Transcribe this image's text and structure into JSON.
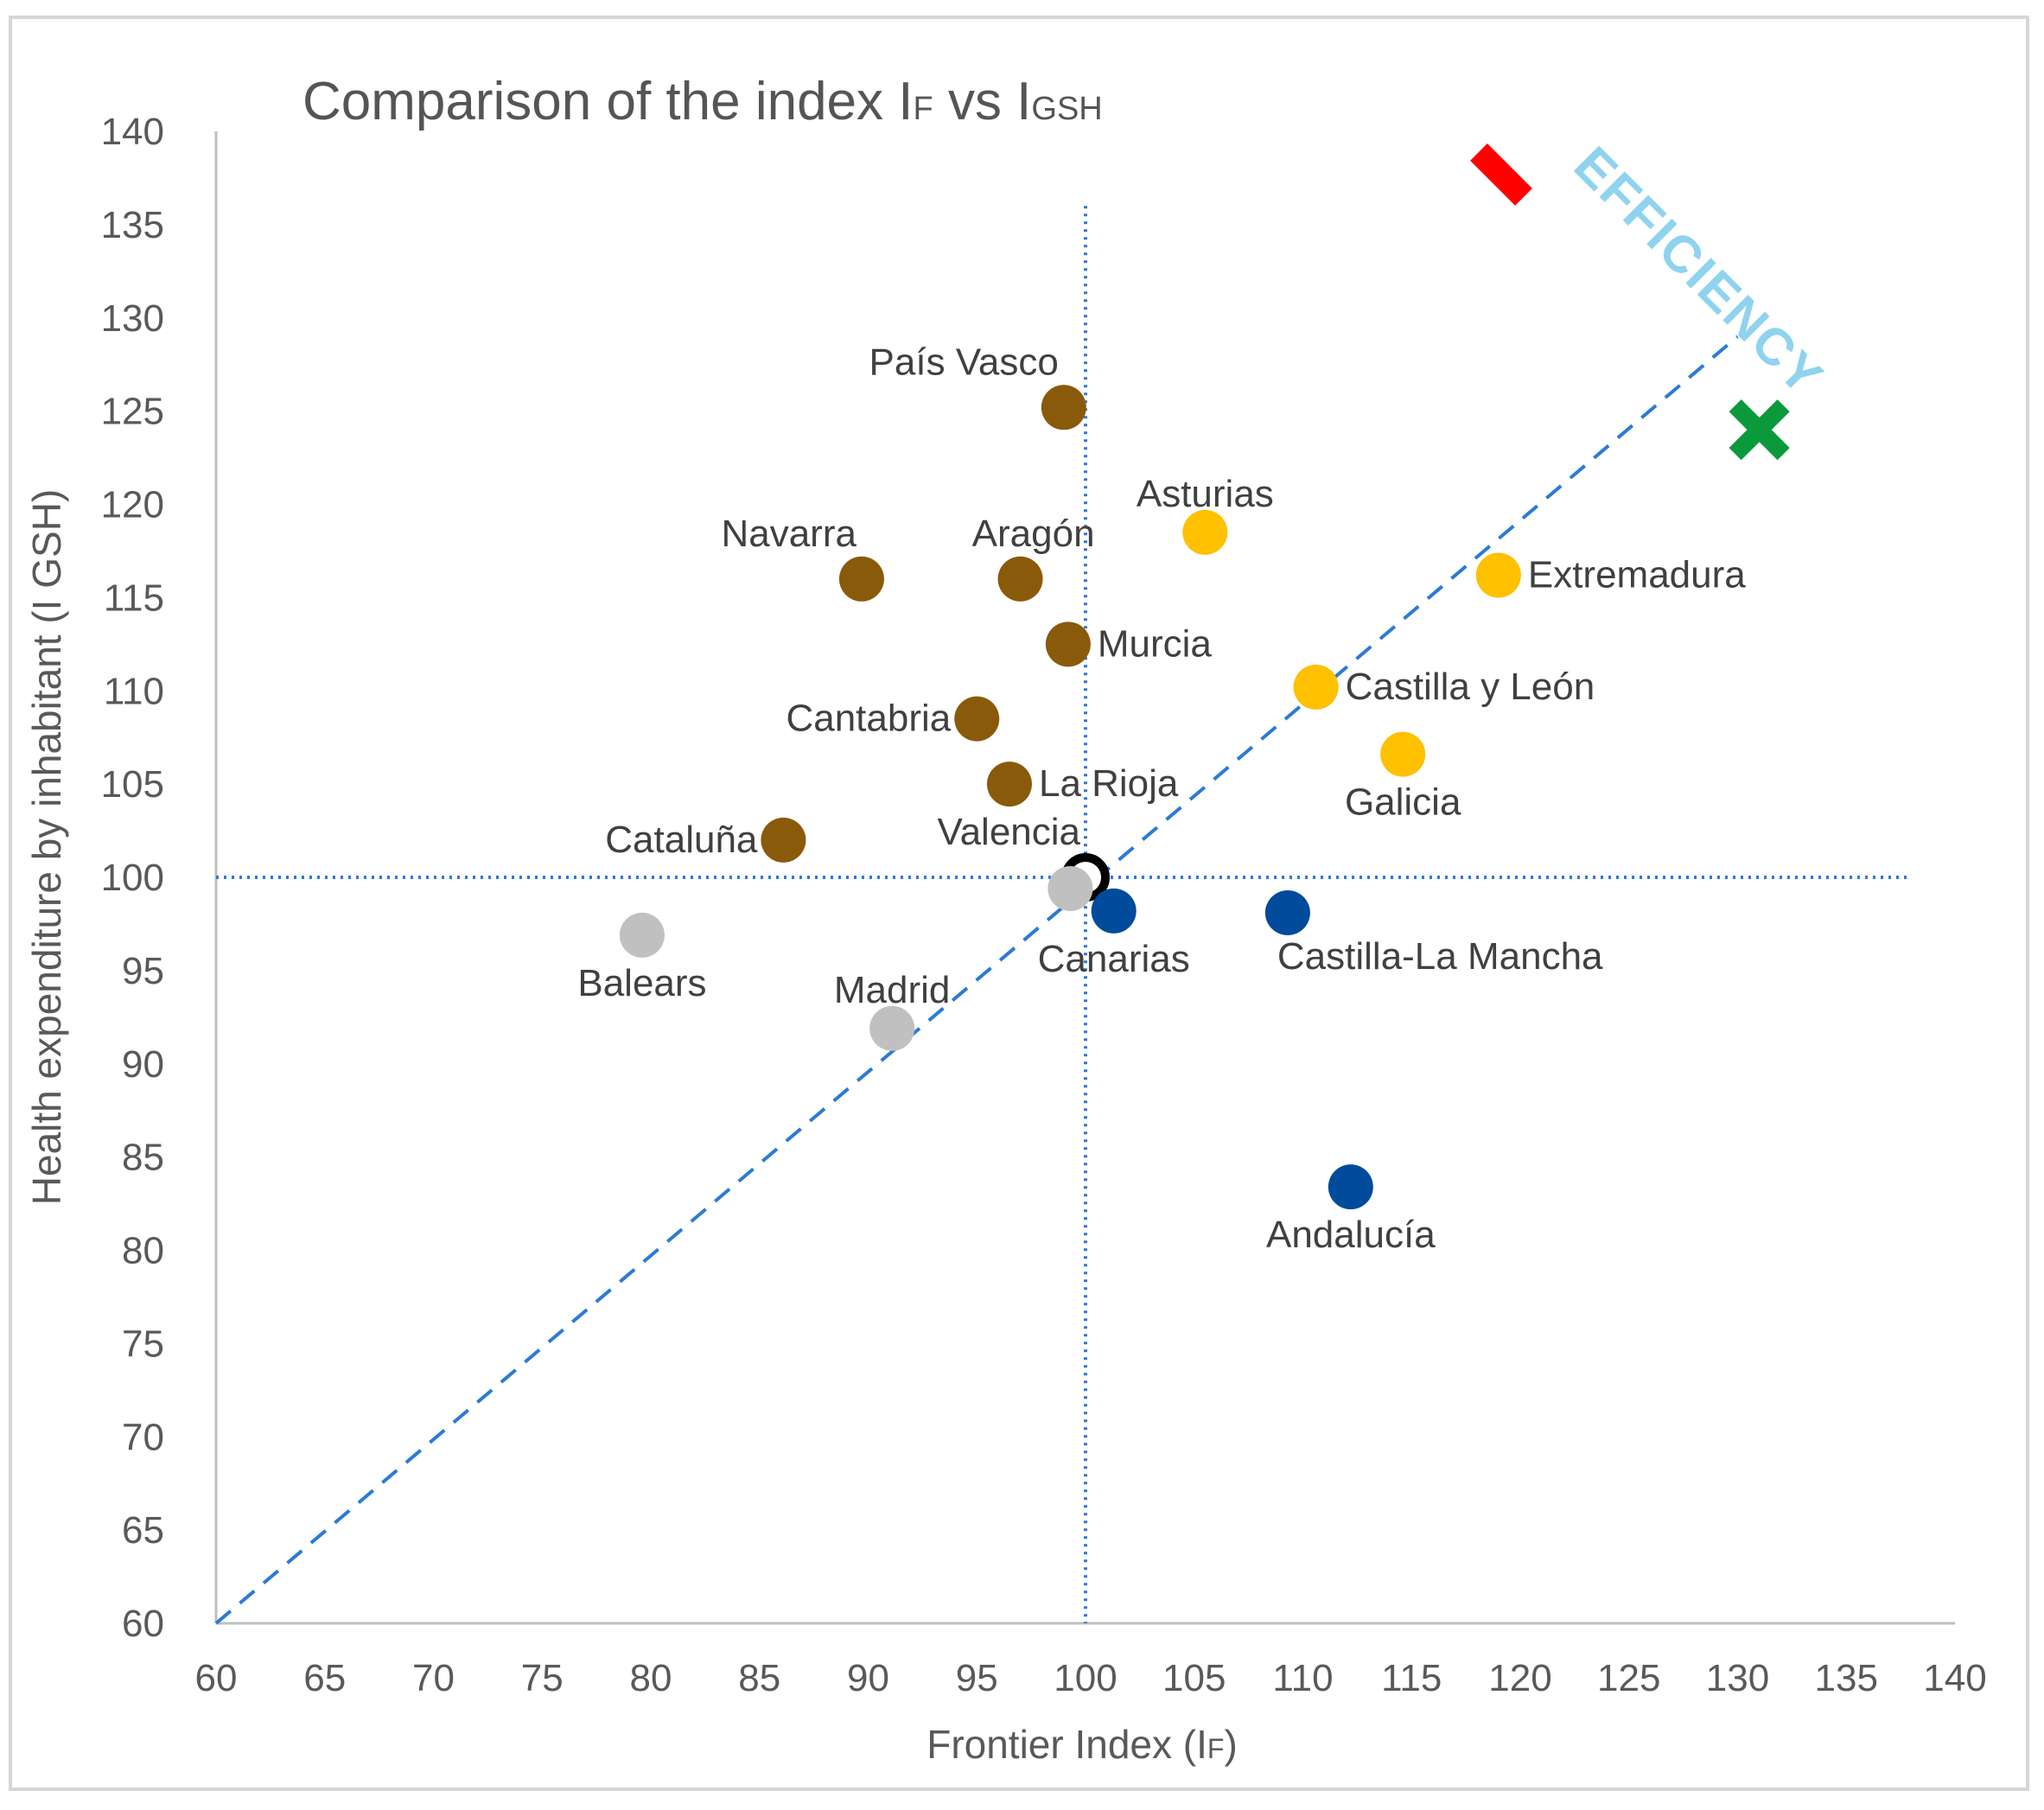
{
  "chart_data": {
    "type": "scatter",
    "title": "Comparison of the index IF vs IGSH",
    "title_parts": {
      "main": "Comparison of the index I",
      "sub1": "F",
      "mid": " vs I",
      "sub2": "GSH"
    },
    "xlabel": "Frontier Index (IF)",
    "xlabel_parts": {
      "main": "Frontier Index (I",
      "sub": "F",
      "end": ")"
    },
    "ylabel": "Health expenditure by inhabitant (I GSH)",
    "xlim": [
      60,
      140
    ],
    "ylim": [
      60,
      140
    ],
    "xticks": [
      "60",
      "65",
      "70",
      "75",
      "80",
      "85",
      "90",
      "95",
      "100",
      "105",
      "110",
      "115",
      "120",
      "125",
      "130",
      "135",
      "140"
    ],
    "yticks": [
      "60",
      "65",
      "70",
      "75",
      "80",
      "85",
      "90",
      "95",
      "100",
      "105",
      "110",
      "115",
      "120",
      "125",
      "130",
      "135",
      "140"
    ],
    "reference_lines": {
      "vertical_x": 100,
      "horizontal_y": 100,
      "vertical_y_range": [
        60,
        136
      ],
      "horizontal_x_range": [
        60,
        138
      ]
    },
    "efficiency_line": {
      "from": [
        60,
        60
      ],
      "to": [
        130,
        129
      ],
      "label": "EFFICIENCY"
    },
    "colors": {
      "brown": "#8a5a0b",
      "yellow": "#ffc000",
      "blue": "#004b9b",
      "gray": "#c0c0c0",
      "black": "#000000",
      "guide": "#2b7bd6",
      "red_marker": "#ff0000",
      "green_marker": "#0a9a3b"
    },
    "markers": [
      {
        "name": "red-bar-marker",
        "x": 120,
        "y": 137.5,
        "color": "#ff0000"
      },
      {
        "name": "green-cross-marker",
        "x": 131,
        "y": 124,
        "color": "#0a9a3b"
      }
    ],
    "points": [
      {
        "label": "País Vasco",
        "x": 99,
        "y": 125.2,
        "color": "#8a5a0b",
        "label_pos": "above-left"
      },
      {
        "label": "Navarra",
        "x": 89.7,
        "y": 116,
        "color": "#8a5a0b",
        "label_pos": "above-left"
      },
      {
        "label": "Aragón",
        "x": 97,
        "y": 116,
        "color": "#8a5a0b",
        "label_pos": "above-right"
      },
      {
        "label": "Murcia",
        "x": 99.2,
        "y": 112.5,
        "color": "#8a5a0b",
        "label_pos": "right"
      },
      {
        "label": "Cantabria",
        "x": 95,
        "y": 108.5,
        "color": "#8a5a0b",
        "label_pos": "left"
      },
      {
        "label": "La Rioja",
        "x": 96.5,
        "y": 105,
        "color": "#8a5a0b",
        "label_pos": "right"
      },
      {
        "label": "Cataluña",
        "x": 86.1,
        "y": 102,
        "color": "#8a5a0b",
        "label_pos": "left"
      },
      {
        "label": "Asturias",
        "x": 105.5,
        "y": 118.5,
        "color": "#ffc000",
        "label_pos": "above"
      },
      {
        "label": "Extremadura",
        "x": 119,
        "y": 116.2,
        "color": "#ffc000",
        "label_pos": "right"
      },
      {
        "label": "Castilla y León",
        "x": 110.6,
        "y": 110.2,
        "color": "#ffc000",
        "label_pos": "right"
      },
      {
        "label": "Galicia",
        "x": 114.6,
        "y": 106.6,
        "color": "#ffc000",
        "label_pos": "below"
      },
      {
        "label": "Valencia",
        "x": 100,
        "y": 100,
        "color": "#000000",
        "label_pos": "above-left"
      },
      {
        "label": "",
        "x": 99.3,
        "y": 99.4,
        "color": "#c0c0c0",
        "label_pos": "none"
      },
      {
        "label": "Canarias",
        "x": 101.3,
        "y": 98.2,
        "color": "#004b9b",
        "label_pos": "below"
      },
      {
        "label": "Castilla-La Mancha",
        "x": 109.3,
        "y": 98.1,
        "color": "#004b9b",
        "label_pos": "below-right"
      },
      {
        "label": "Andalucía",
        "x": 112.2,
        "y": 83.4,
        "color": "#004b9b",
        "label_pos": "below"
      },
      {
        "label": "Balears",
        "x": 79.6,
        "y": 96.9,
        "color": "#c0c0c0",
        "label_pos": "below"
      },
      {
        "label": "Madrid",
        "x": 91.1,
        "y": 91.9,
        "color": "#c0c0c0",
        "label_pos": "above"
      }
    ]
  }
}
